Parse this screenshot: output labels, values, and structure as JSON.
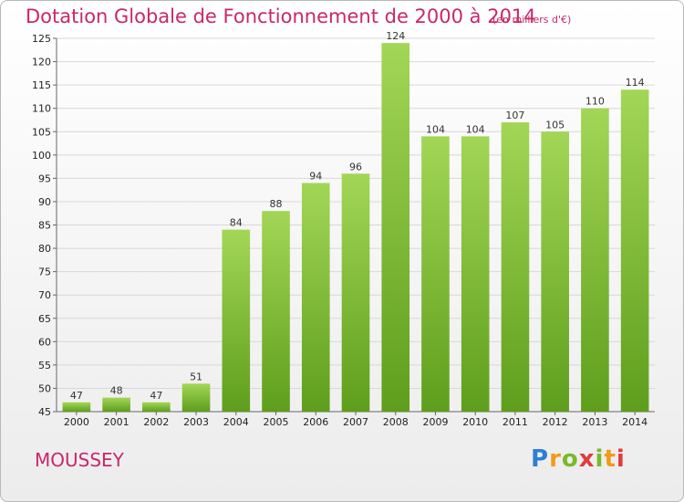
{
  "header": {
    "title": "Dotation Globale de Fonctionnement de 2000 à 2014",
    "subtitle": "(en milliers d'€)"
  },
  "footer": {
    "commune": "MOUSSEY",
    "logo_text": "Proxiti"
  },
  "colors": {
    "bar_top": "#a3d656",
    "bar_bottom": "#5e9e1c",
    "title": "#c8286a",
    "grid": "#d8d8d8"
  },
  "chart_data": {
    "type": "bar",
    "title": "Dotation Globale de Fonctionnement de 2000 à 2014",
    "subtitle": "(en milliers d'€)",
    "xlabel": "",
    "ylabel": "",
    "categories": [
      "2000",
      "2001",
      "2002",
      "2003",
      "2004",
      "2005",
      "2006",
      "2007",
      "2008",
      "2009",
      "2010",
      "2011",
      "2012",
      "2013",
      "2014"
    ],
    "values": [
      47,
      48,
      47,
      51,
      84,
      88,
      94,
      96,
      124,
      104,
      104,
      107,
      105,
      110,
      114
    ],
    "ylim": [
      45,
      125
    ],
    "yticks": [
      45,
      50,
      55,
      60,
      65,
      70,
      75,
      80,
      85,
      90,
      95,
      100,
      105,
      110,
      115,
      120,
      125
    ],
    "grid": true,
    "legend": "none"
  }
}
